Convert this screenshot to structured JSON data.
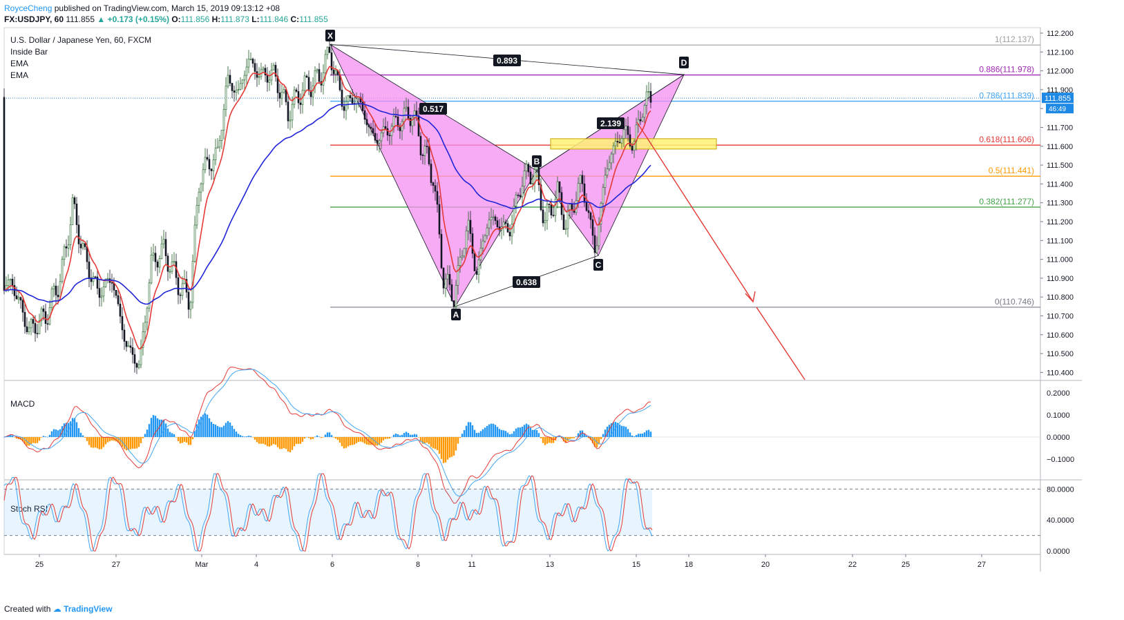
{
  "header": {
    "author": "RoyceCheng",
    "published": "published on TradingView.com, March 15, 2019 09:13:12 +08",
    "symbol": "FX:USDJPY, 60",
    "last": "111.855",
    "change": "+0.173 (+0.15%)",
    "o_label": "O:",
    "o": "111.856",
    "h_label": "H:",
    "h": "111.873",
    "l_label": "L:",
    "l": "111.846",
    "c_label": "C:",
    "c": "111.855"
  },
  "legend": {
    "main": "U.S. Dollar / Japanese Yen, 60, FXCM",
    "items": [
      "Inside Bar",
      "EMA",
      "EMA"
    ]
  },
  "panes": {
    "macd_label": "MACD",
    "stoch_label": "Stoch RSI"
  },
  "price_badge": {
    "price": "111.855",
    "countdown": "46:49"
  },
  "footer": {
    "prefix": "Created with",
    "brand": "TradingView"
  },
  "colors": {
    "bull": "#26a69a",
    "bear": "#ef5350",
    "ema_fast": "#e53935",
    "ema_slow": "#1e24d8",
    "pattern_fill": "#f48ff0",
    "macd_pos": "#2196f3",
    "macd_neg": "#ff9800"
  },
  "chart_data": {
    "type": "candlestick",
    "price_axis": {
      "ylim": [
        110.35,
        112.2
      ],
      "ticks": [
        "112.200",
        "112.100",
        "112.000",
        "111.900",
        "111.800",
        "111.700",
        "111.600",
        "111.500",
        "111.400",
        "111.300",
        "111.200",
        "111.100",
        "111.000",
        "110.900",
        "110.800",
        "110.700",
        "110.600",
        "110.500",
        "110.400"
      ]
    },
    "x_ticks": [
      "25",
      "27",
      "Mar",
      "4",
      "6",
      "8",
      "11",
      "13",
      "15",
      "18",
      "20",
      "22",
      "25",
      "27"
    ],
    "fib_levels": [
      {
        "ratio": "1",
        "price": 112.137,
        "label": "1(112.137)",
        "color": "#9e9e9e"
      },
      {
        "ratio": "0.886",
        "price": 111.978,
        "label": "0.886(111.978)",
        "color": "#9c27b0"
      },
      {
        "ratio": "0.786",
        "price": 111.839,
        "label": "0.786(111.839)",
        "color": "#42a5f5"
      },
      {
        "ratio": "0.618",
        "price": 111.606,
        "label": "0.618(111.606)",
        "color": "#e53935"
      },
      {
        "ratio": "0.5",
        "price": 111.441,
        "label": "0.5(111.441)",
        "color": "#ff9800"
      },
      {
        "ratio": "0.382",
        "price": 111.277,
        "label": "0.382(111.277)",
        "color": "#43a047"
      },
      {
        "ratio": "0",
        "price": 110.746,
        "label": "0(110.746)",
        "color": "#787b86"
      }
    ],
    "pattern_points": [
      {
        "name": "X",
        "price": 112.14
      },
      {
        "name": "A",
        "price": 110.75
      },
      {
        "name": "B",
        "price": 111.47
      },
      {
        "name": "C",
        "price": 111.02
      },
      {
        "name": "D",
        "price": 111.98
      }
    ],
    "pattern_ratios": [
      "0.517",
      "0.638",
      "2.139",
      "0.893"
    ],
    "macd_axis": {
      "ylim": [
        -0.19,
        0.25
      ],
      "ticks": [
        "0.2000",
        "0.1000",
        "0.0000",
        "−0.1000"
      ]
    },
    "stoch_axis": {
      "ylim": [
        -3,
        103
      ],
      "ticks": [
        "80.0000",
        "40.0000",
        "0.0000"
      ]
    }
  }
}
